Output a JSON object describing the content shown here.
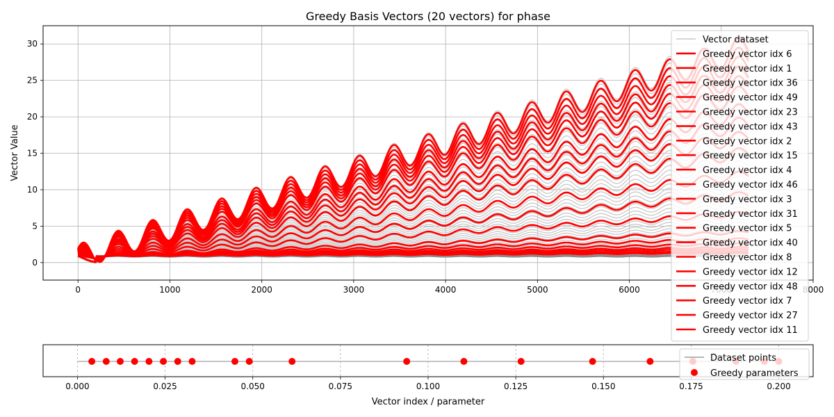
{
  "chart_data": [
    {
      "type": "line",
      "title": "Greedy Basis Vectors (20 vectors) for phase",
      "xlabel": "",
      "ylabel": "Vector Value",
      "xlim": [
        -380,
        8000
      ],
      "ylim": [
        -2.4,
        32.5
      ],
      "xticks": [
        0,
        1000,
        2000,
        3000,
        4000,
        5000,
        6000,
        7000,
        8000
      ],
      "yticks": [
        0,
        5,
        10,
        15,
        20,
        25,
        30
      ],
      "grid": true,
      "legend": "upper right",
      "dataset_label": "Vector dataset",
      "dataset_color": "#c8c8c8",
      "greedy_color": "#ff0000",
      "series": [
        {
          "name": "Greedy vector idx 6",
          "final_value": 29.5
        },
        {
          "name": "Greedy vector idx 1",
          "final_value": 28.2
        },
        {
          "name": "Greedy vector idx 36",
          "final_value": 27.0
        },
        {
          "name": "Greedy vector idx 49",
          "final_value": 25.7
        },
        {
          "name": "Greedy vector idx 23",
          "final_value": 24.4
        },
        {
          "name": "Greedy vector idx 43",
          "final_value": 23.0
        },
        {
          "name": "Greedy vector idx 2",
          "final_value": 20.6
        },
        {
          "name": "Greedy vector idx 15",
          "final_value": 18.8
        },
        {
          "name": "Greedy vector idx 4",
          "final_value": 16.9
        },
        {
          "name": "Greedy vector idx 46",
          "final_value": 14.7
        },
        {
          "name": "Greedy vector idx 3",
          "final_value": 11.5
        },
        {
          "name": "Greedy vector idx 31",
          "final_value": 8.7
        },
        {
          "name": "Greedy vector idx 5",
          "final_value": 6.0
        },
        {
          "name": "Greedy vector idx 40",
          "final_value": 3.4
        },
        {
          "name": "Greedy vector idx 8",
          "final_value": 2.4
        },
        {
          "name": "Greedy vector idx 12",
          "final_value": 1.7
        },
        {
          "name": "Greedy vector idx 48",
          "final_value": 1.2
        },
        {
          "name": "Greedy vector idx 7",
          "final_value": 0.9
        },
        {
          "name": "Greedy vector idx 27",
          "final_value": 0.6
        },
        {
          "name": "Greedy vector idx 11",
          "final_value": 0.4
        }
      ]
    },
    {
      "type": "scatter",
      "title": "",
      "xlabel": "Vector index / parameter",
      "ylabel": "",
      "xlim": [
        -0.0098,
        0.2098
      ],
      "xticks": [
        "0.000",
        "0.025",
        "0.050",
        "0.075",
        "0.100",
        "0.125",
        "0.150",
        "0.175",
        "0.200"
      ],
      "grid": true,
      "legend": "lower right",
      "dataset_label": "Dataset points",
      "greedy_label": "Greedy parameters",
      "dataset_range": [
        0.0,
        0.2
      ],
      "greedy_points": [
        0.0041,
        0.0082,
        0.0122,
        0.0163,
        0.0204,
        0.0245,
        0.0286,
        0.0327,
        0.0449,
        0.049,
        0.0612,
        0.0939,
        0.1102,
        0.1265,
        0.1469,
        0.1633,
        0.1755,
        0.1878,
        0.1959,
        0.2
      ]
    }
  ]
}
